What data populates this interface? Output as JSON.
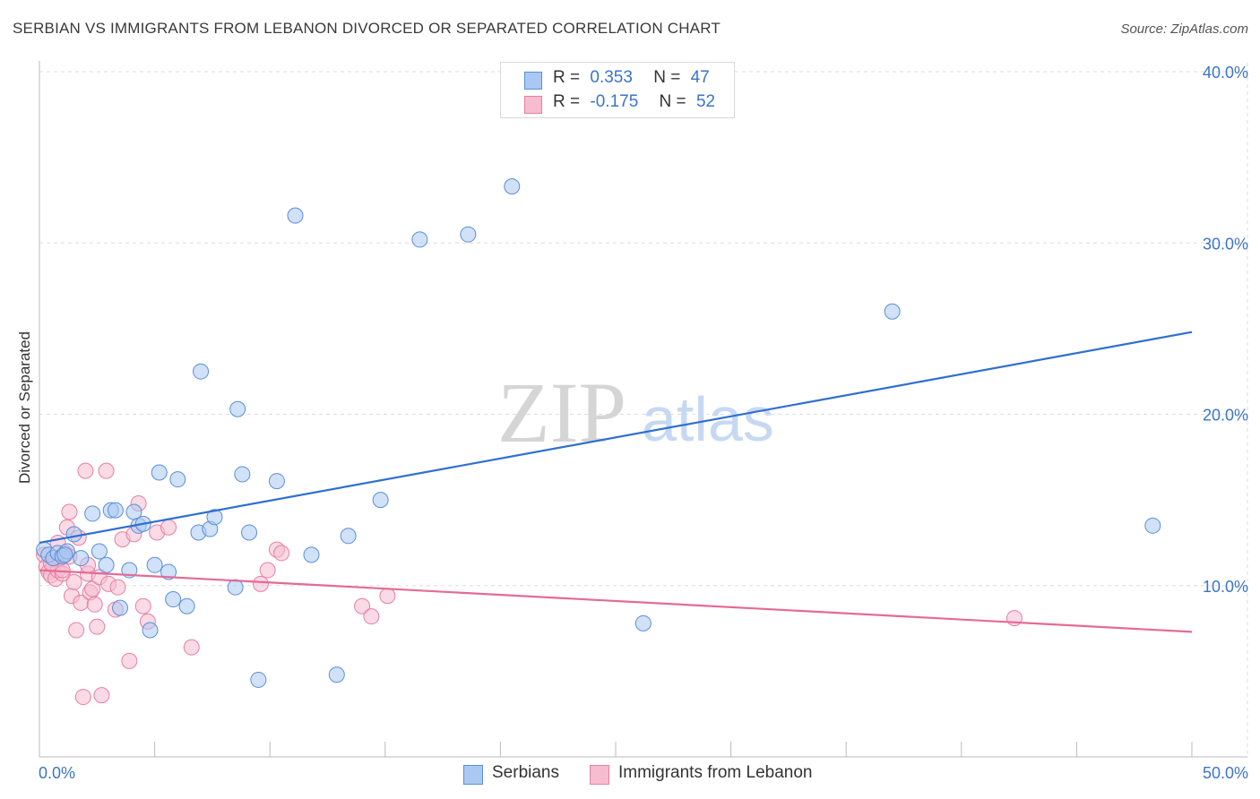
{
  "header": {
    "title": "SERBIAN VS IMMIGRANTS FROM LEBANON DIVORCED OR SEPARATED CORRELATION CHART",
    "source": "Source: ZipAtlas.com"
  },
  "legend": {
    "series1": {
      "r_label": "R =",
      "r_value": "0.353",
      "n_label": "N =",
      "n_value": "47"
    },
    "series2": {
      "r_label": "R =",
      "r_value": "-0.175",
      "n_label": "N =",
      "n_value": "52"
    }
  },
  "bottom_legend": {
    "series1": "Serbians",
    "series2": "Immigrants from Lebanon"
  },
  "watermark": {
    "zip": "ZIP",
    "atlas": "atlas"
  },
  "colors": {
    "blue_fill": "#aac8f2",
    "blue_stroke": "#5b8fd8",
    "blue_line": "#2f6fd0",
    "pink_fill": "#f6bccf",
    "pink_stroke": "#e67fa2",
    "pink_line": "#e46a96",
    "tick_text": "#3b74c9",
    "grid": "#dddddd"
  },
  "chart_data": {
    "type": "scatter",
    "title": "SERBIAN VS IMMIGRANTS FROM LEBANON DIVORCED OR SEPARATED CORRELATION CHART",
    "xlabel": "",
    "ylabel": "Divorced or Separated",
    "xlim": [
      0,
      50
    ],
    "ylim": [
      0,
      40
    ],
    "x_tick_labels": [
      "0.0%",
      "50.0%"
    ],
    "y_ticks": [
      10,
      20,
      30,
      40
    ],
    "y_tick_labels": [
      "10.0%",
      "20.0%",
      "30.0%",
      "40.0%"
    ],
    "grid": true,
    "legend_position": "top-center",
    "series": [
      {
        "name": "Serbians",
        "r": 0.353,
        "n": 47,
        "trend": {
          "x": [
            0,
            50
          ],
          "y": [
            12.5,
            24.8
          ]
        },
        "points": [
          [
            0.2,
            12.1
          ],
          [
            0.4,
            11.8
          ],
          [
            0.6,
            11.6
          ],
          [
            0.8,
            11.9
          ],
          [
            1.0,
            11.7
          ],
          [
            1.2,
            12.0
          ],
          [
            1.5,
            13.0
          ],
          [
            1.8,
            11.6
          ],
          [
            2.3,
            14.2
          ],
          [
            2.6,
            12.0
          ],
          [
            2.9,
            11.2
          ],
          [
            3.1,
            14.4
          ],
          [
            3.3,
            14.4
          ],
          [
            3.9,
            10.9
          ],
          [
            4.1,
            14.3
          ],
          [
            4.3,
            13.5
          ],
          [
            4.5,
            13.6
          ],
          [
            4.8,
            7.4
          ],
          [
            5.0,
            11.2
          ],
          [
            5.2,
            16.6
          ],
          [
            5.6,
            10.8
          ],
          [
            5.8,
            9.2
          ],
          [
            6.0,
            16.2
          ],
          [
            6.4,
            8.8
          ],
          [
            6.9,
            13.1
          ],
          [
            7.0,
            22.5
          ],
          [
            7.4,
            13.3
          ],
          [
            7.6,
            14.0
          ],
          [
            8.5,
            9.9
          ],
          [
            8.6,
            20.3
          ],
          [
            8.8,
            16.5
          ],
          [
            9.1,
            13.1
          ],
          [
            9.5,
            4.5
          ],
          [
            10.3,
            16.1
          ],
          [
            11.1,
            31.6
          ],
          [
            11.8,
            11.8
          ],
          [
            12.9,
            4.8
          ],
          [
            13.4,
            12.9
          ],
          [
            14.8,
            15.0
          ],
          [
            16.5,
            30.2
          ],
          [
            18.6,
            30.5
          ],
          [
            20.5,
            33.3
          ],
          [
            26.2,
            7.8
          ],
          [
            37.0,
            26.0
          ],
          [
            48.3,
            13.5
          ],
          [
            3.5,
            8.7
          ],
          [
            1.1,
            11.8
          ]
        ]
      },
      {
        "name": "Immigrants from Lebanon",
        "r": -0.175,
        "n": 52,
        "trend": {
          "x": [
            0,
            50
          ],
          "y": [
            10.9,
            7.3
          ]
        },
        "points": [
          [
            0.2,
            11.8
          ],
          [
            0.3,
            11.1
          ],
          [
            0.4,
            10.8
          ],
          [
            0.5,
            10.6
          ],
          [
            0.6,
            11.2
          ],
          [
            0.7,
            10.4
          ],
          [
            0.8,
            10.9
          ],
          [
            0.9,
            11.6
          ],
          [
            1.0,
            10.7
          ],
          [
            1.1,
            11.9
          ],
          [
            1.2,
            13.4
          ],
          [
            1.3,
            14.3
          ],
          [
            1.4,
            9.4
          ],
          [
            1.5,
            10.2
          ],
          [
            1.6,
            7.4
          ],
          [
            1.7,
            12.8
          ],
          [
            1.8,
            9.0
          ],
          [
            1.9,
            3.5
          ],
          [
            2.0,
            16.7
          ],
          [
            2.1,
            10.7
          ],
          [
            2.2,
            9.6
          ],
          [
            2.3,
            9.8
          ],
          [
            2.4,
            8.9
          ],
          [
            2.5,
            7.6
          ],
          [
            2.6,
            10.5
          ],
          [
            2.7,
            3.6
          ],
          [
            2.9,
            16.7
          ],
          [
            3.0,
            10.1
          ],
          [
            3.3,
            8.6
          ],
          [
            3.4,
            9.9
          ],
          [
            3.6,
            12.7
          ],
          [
            3.9,
            5.6
          ],
          [
            4.1,
            13.0
          ],
          [
            4.3,
            14.8
          ],
          [
            4.5,
            8.8
          ],
          [
            4.7,
            7.9
          ],
          [
            5.1,
            13.1
          ],
          [
            5.6,
            13.4
          ],
          [
            6.6,
            6.4
          ],
          [
            9.6,
            10.1
          ],
          [
            9.9,
            10.9
          ],
          [
            10.3,
            12.1
          ],
          [
            10.5,
            11.9
          ],
          [
            14.0,
            8.8
          ],
          [
            14.4,
            8.2
          ],
          [
            15.1,
            9.4
          ],
          [
            42.3,
            8.1
          ],
          [
            1.0,
            10.9
          ],
          [
            0.5,
            11.3
          ],
          [
            2.1,
            11.2
          ],
          [
            0.8,
            12.5
          ],
          [
            1.3,
            11.7
          ]
        ]
      }
    ]
  }
}
